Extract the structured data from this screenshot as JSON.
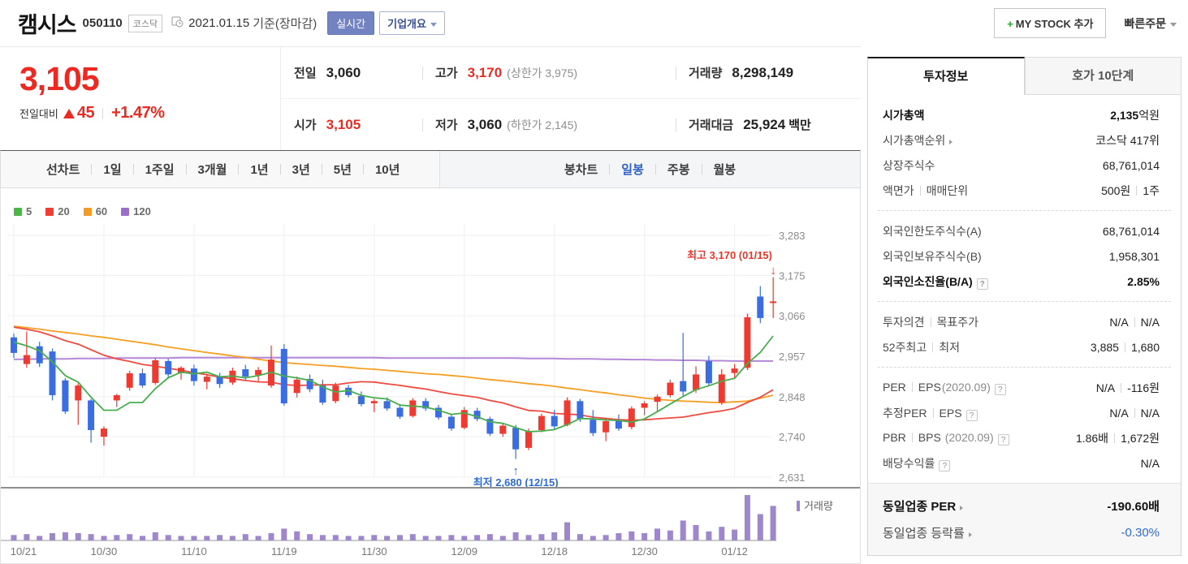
{
  "header": {
    "stock_name": "캠시스",
    "stock_code": "050110",
    "market_badge": "코스닥",
    "date": "2021.01.15",
    "date_suffix": "기준(장마감)",
    "realtime_btn": "실시간",
    "overview_btn": "기업개요",
    "mystock_plus": "+",
    "mystock_label": "MY STOCK 추가",
    "quick_order": "빠른주문"
  },
  "price": {
    "current": "3,105",
    "change_label": "전일대비",
    "change_value": "45",
    "change_pct": "+1.47%",
    "prev_label": "전일",
    "prev": "3,060",
    "high_label": "고가",
    "high": "3,170",
    "high_limit": "(상한가 3,975)",
    "volume_label": "거래량",
    "volume": "8,298,149",
    "open_label": "시가",
    "open": "3,105",
    "low_label": "저가",
    "low": "3,060",
    "low_limit": "(하한가 2,145)",
    "value_label": "거래대금",
    "value": "25,924",
    "value_unit": "백만"
  },
  "toolbar": {
    "line_label": "선차트",
    "line_items": [
      "1일",
      "1주일",
      "3개월",
      "1년",
      "3년",
      "5년",
      "10년"
    ],
    "candle_label": "봉차트",
    "candle_items": [
      "일봉",
      "주봉",
      "월봉"
    ],
    "active_candle": "일봉"
  },
  "chart": {
    "ma_legend": [
      {
        "label": "5",
        "color": "#4cb749"
      },
      {
        "label": "20",
        "color": "#ee3f34"
      },
      {
        "label": "60",
        "color": "#f59b23"
      },
      {
        "label": "120",
        "color": "#9b6ec8"
      }
    ],
    "y_labels": [
      "3,283",
      "3,175",
      "3,066",
      "2,957",
      "2,848",
      "2,740",
      "2,631"
    ],
    "volume_legend": "거래량"
  },
  "chart_data": {
    "type": "candlestick",
    "title": "캠시스 일봉 차트",
    "y_ticks": [
      3283,
      3175,
      3066,
      2957,
      2848,
      2740,
      2631
    ],
    "x_label_indices": [
      0,
      7,
      14,
      21,
      28,
      35,
      42,
      49,
      56
    ],
    "dates": [
      "10/21",
      "10/22",
      "10/23",
      "10/26",
      "10/27",
      "10/28",
      "10/29",
      "10/30",
      "11/02",
      "11/03",
      "11/04",
      "11/05",
      "11/06",
      "11/09",
      "11/10",
      "11/11",
      "11/12",
      "11/13",
      "11/16",
      "11/17",
      "11/18",
      "11/19",
      "11/20",
      "11/23",
      "11/24",
      "11/25",
      "11/26",
      "11/27",
      "11/30",
      "12/01",
      "12/02",
      "12/03",
      "12/04",
      "12/07",
      "12/08",
      "12/09",
      "12/10",
      "12/11",
      "12/14",
      "12/15",
      "12/16",
      "12/17",
      "12/18",
      "12/21",
      "12/22",
      "12/23",
      "12/24",
      "12/28",
      "12/29",
      "12/30",
      "01/04",
      "01/05",
      "01/06",
      "01/07",
      "01/08",
      "01/11",
      "01/12",
      "01/13",
      "01/14",
      "01/15"
    ],
    "open": [
      3008,
      2936,
      2984,
      2970,
      2892,
      2838,
      2838,
      2740,
      2838,
      2872,
      2911,
      2885,
      2944,
      2912,
      2924,
      2888,
      2902,
      2886,
      2922,
      2906,
      2878,
      2977,
      2858,
      2896,
      2878,
      2836,
      2872,
      2850,
      2830,
      2836,
      2818,
      2796,
      2836,
      2818,
      2794,
      2764,
      2810,
      2788,
      2748,
      2764,
      2710,
      2758,
      2796,
      2772,
      2836,
      2786,
      2752,
      2784,
      2766,
      2818,
      2834,
      2852,
      2890,
      2866,
      2944,
      2832,
      2912,
      2926,
      3118,
      3105
    ],
    "high": [
      3018,
      3024,
      2996,
      2978,
      2898,
      2884,
      2842,
      2768,
      2856,
      2918,
      2924,
      2952,
      2950,
      2930,
      2934,
      2910,
      2912,
      2926,
      2934,
      2928,
      2986,
      2990,
      2902,
      2908,
      2894,
      2886,
      2880,
      2862,
      2842,
      2846,
      2828,
      2844,
      2844,
      2826,
      2800,
      2820,
      2818,
      2794,
      2776,
      2772,
      2762,
      2802,
      2812,
      2846,
      2842,
      2812,
      2788,
      2800,
      2822,
      2836,
      2854,
      2894,
      3020,
      2930,
      2958,
      2922,
      2936,
      3072,
      3146,
      3170
    ],
    "low": [
      2952,
      2926,
      2928,
      2838,
      2802,
      2772,
      2724,
      2716,
      2820,
      2864,
      2872,
      2880,
      2900,
      2894,
      2878,
      2868,
      2872,
      2880,
      2892,
      2888,
      2872,
      2824,
      2846,
      2860,
      2826,
      2830,
      2846,
      2822,
      2806,
      2810,
      2788,
      2792,
      2810,
      2786,
      2756,
      2760,
      2782,
      2742,
      2740,
      2680,
      2704,
      2752,
      2760,
      2768,
      2780,
      2742,
      2728,
      2756,
      2760,
      2798,
      2808,
      2846,
      2848,
      2858,
      2876,
      2826,
      2896,
      2920,
      3046,
      3060
    ],
    "close": [
      2966,
      2960,
      2938,
      2852,
      2808,
      2878,
      2758,
      2762,
      2852,
      2911,
      2878,
      2946,
      2908,
      2926,
      2890,
      2902,
      2882,
      2918,
      2902,
      2920,
      2948,
      2830,
      2894,
      2868,
      2832,
      2878,
      2852,
      2828,
      2836,
      2816,
      2794,
      2838,
      2816,
      2792,
      2762,
      2812,
      2788,
      2748,
      2770,
      2706,
      2756,
      2796,
      2768,
      2838,
      2788,
      2750,
      2782,
      2762,
      2816,
      2830,
      2848,
      2886,
      2862,
      2908,
      2884,
      2908,
      2924,
      3062,
      3060,
      3105
    ],
    "volume": [
      12,
      14,
      10,
      16,
      18,
      16,
      14,
      10,
      12,
      14,
      10,
      18,
      12,
      10,
      10,
      10,
      12,
      10,
      14,
      10,
      16,
      26,
      20,
      14,
      12,
      12,
      10,
      10,
      12,
      10,
      12,
      14,
      10,
      10,
      12,
      10,
      12,
      14,
      10,
      18,
      12,
      14,
      18,
      40,
      14,
      10,
      12,
      16,
      20,
      16,
      26,
      22,
      44,
      34,
      20,
      30,
      24,
      100,
      58,
      76
    ],
    "ma60": [
      3038,
      3034,
      3030,
      3025,
      3021,
      3017,
      3012,
      3008,
      3003,
      2998,
      2993,
      2988,
      2982,
      2977,
      2972,
      2967,
      2963,
      2958,
      2954,
      2949,
      2944,
      2940,
      2937,
      2935,
      2932,
      2930,
      2927,
      2924,
      2922,
      2919,
      2916,
      2913,
      2910,
      2908,
      2905,
      2902,
      2898,
      2894,
      2891,
      2887,
      2883,
      2880,
      2876,
      2871,
      2867,
      2862,
      2858,
      2853,
      2849,
      2844,
      2841,
      2838,
      2836,
      2835,
      2833,
      2832,
      2834,
      2836,
      2844,
      2852
    ],
    "ma120": [
      2949,
      2949,
      2950,
      2950,
      2950,
      2951,
      2951,
      2951,
      2952,
      2952,
      2952,
      2952,
      2952,
      2953,
      2953,
      2953,
      2953,
      2953,
      2953,
      2953,
      2953,
      2953,
      2953,
      2953,
      2953,
      2953,
      2953,
      2953,
      2953,
      2952,
      2952,
      2952,
      2952,
      2952,
      2952,
      2952,
      2952,
      2952,
      2952,
      2952,
      2951,
      2951,
      2951,
      2950,
      2950,
      2950,
      2949,
      2949,
      2948,
      2948,
      2947,
      2947,
      2946,
      2946,
      2945,
      2945,
      2944,
      2944,
      2944,
      2944
    ],
    "ma_seed_closes": [
      3080,
      3075,
      3070,
      3068,
      3066,
      3060,
      3055,
      3050,
      3048,
      3040,
      3035,
      3030,
      3025,
      3020,
      3015,
      3010,
      3005,
      3000,
      2995
    ],
    "annotations": {
      "high": {
        "text": "최고 3,170 (01/15)",
        "arrow": "↓",
        "index": 59,
        "value": 3170,
        "color": "#f03428"
      },
      "low": {
        "text": "최저 2,680 (12/15)",
        "arrow": "↑",
        "index": 39,
        "value": 2680,
        "color": "#2e6bd4"
      }
    },
    "colors": {
      "up": "#ee3a30",
      "down": "#3a6de1",
      "ma5": "#47ad4d",
      "ma20": "#ef4b42",
      "ma60": "#f5a023",
      "ma120": "#b488d9",
      "volume": "#9e87cd",
      "grid": "#efefef"
    }
  },
  "sidebar": {
    "tabs": [
      {
        "label": "투자정보"
      },
      {
        "label": "호가 10단계"
      }
    ],
    "help_glyph": "?",
    "rows": [
      {
        "label": "시가총액",
        "value": "2,135",
        "unit": "억원"
      },
      {
        "label": "시가총액순위",
        "value": "코스닥 417위"
      },
      {
        "label": "상장주식수",
        "value": "68,761,014"
      },
      {
        "label": "액면가",
        "label2": "매매단위",
        "value": "500원",
        "value2": "1주"
      },
      {
        "label": "외국인한도주식수(A)",
        "value": "68,761,014"
      },
      {
        "label": "외국인보유주식수(B)",
        "value": "1,958,301"
      },
      {
        "label": "외국인소진율(B/A)",
        "value": "2.85%"
      },
      {
        "label": "투자의견",
        "label2": "목표주가",
        "value": "N/A",
        "value2": "N/A"
      },
      {
        "label": "52주최고",
        "label2": "최저",
        "value": "3,885",
        "value2": "1,680"
      },
      {
        "label": "PER",
        "label2": "EPS",
        "label2_sub": "(2020.09)",
        "value": "N/A",
        "value2": "-116원"
      },
      {
        "label": "추정PER",
        "label2": "EPS",
        "value": "N/A",
        "value2": "N/A"
      },
      {
        "label": "PBR",
        "label2": "BPS",
        "label2_sub": "(2020.09)",
        "value": "1.86배",
        "value2": "1,672원"
      },
      {
        "label": "배당수익률",
        "value": "N/A"
      },
      {
        "label": "동일업종 PER",
        "value": "-190.60배"
      },
      {
        "label": "동일업종 등락률",
        "value": "-0.30%"
      }
    ]
  }
}
